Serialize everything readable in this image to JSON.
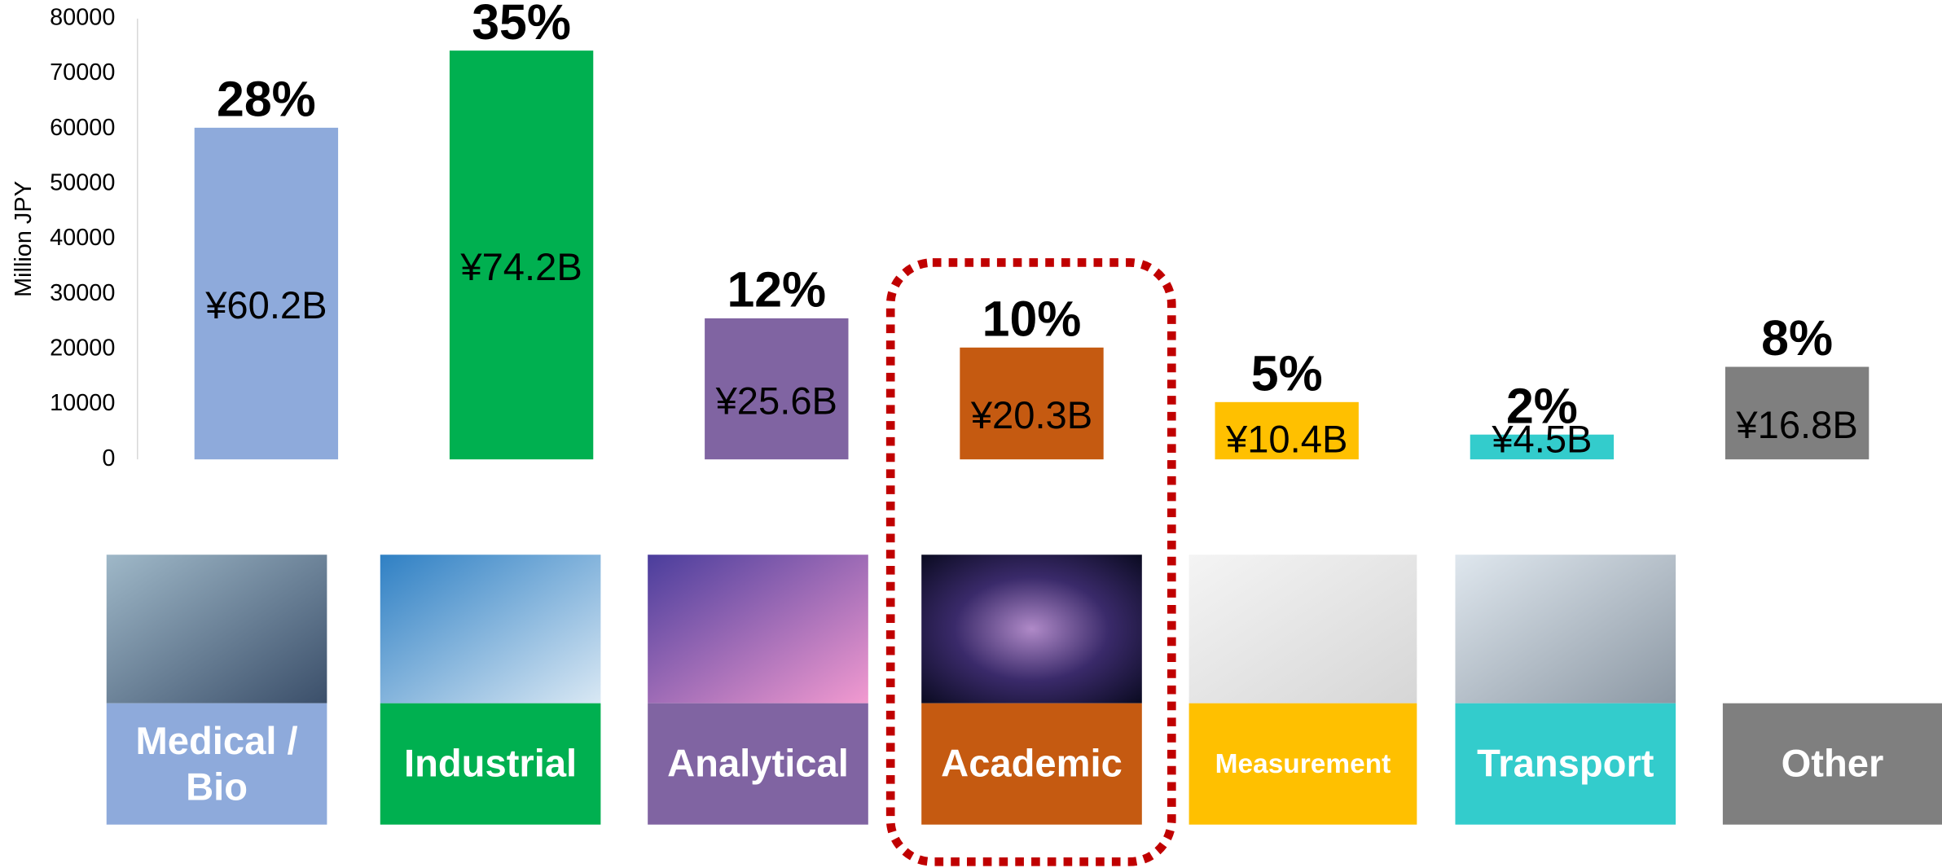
{
  "chart_data": {
    "type": "bar",
    "y_axis_label": "Million JPY",
    "categories": [
      "Medical / Bio",
      "Industrial",
      "Analytical",
      "Academic",
      "Measurement",
      "Transport",
      "Other"
    ],
    "values": [
      60200,
      74200,
      25600,
      20300,
      10400,
      4500,
      16800
    ],
    "value_labels": [
      "¥60.2B",
      "¥74.2B",
      "¥25.6B",
      "¥20.3B",
      "¥10.4B",
      "¥4.5B",
      "¥16.8B"
    ],
    "shares": [
      28,
      35,
      12,
      10,
      5,
      2,
      8
    ],
    "share_labels": [
      "28%",
      "35%",
      "12%",
      "10%",
      "5%",
      "2%",
      "8%"
    ],
    "colors": [
      "#8eaadb",
      "#00b050",
      "#8064a2",
      "#c55a11",
      "#ffc000",
      "#33cccc",
      "#7f7f7f"
    ],
    "ylim": [
      0,
      80000
    ],
    "yticks": [
      0,
      10000,
      20000,
      30000,
      40000,
      50000,
      60000,
      70000,
      80000
    ]
  }
}
